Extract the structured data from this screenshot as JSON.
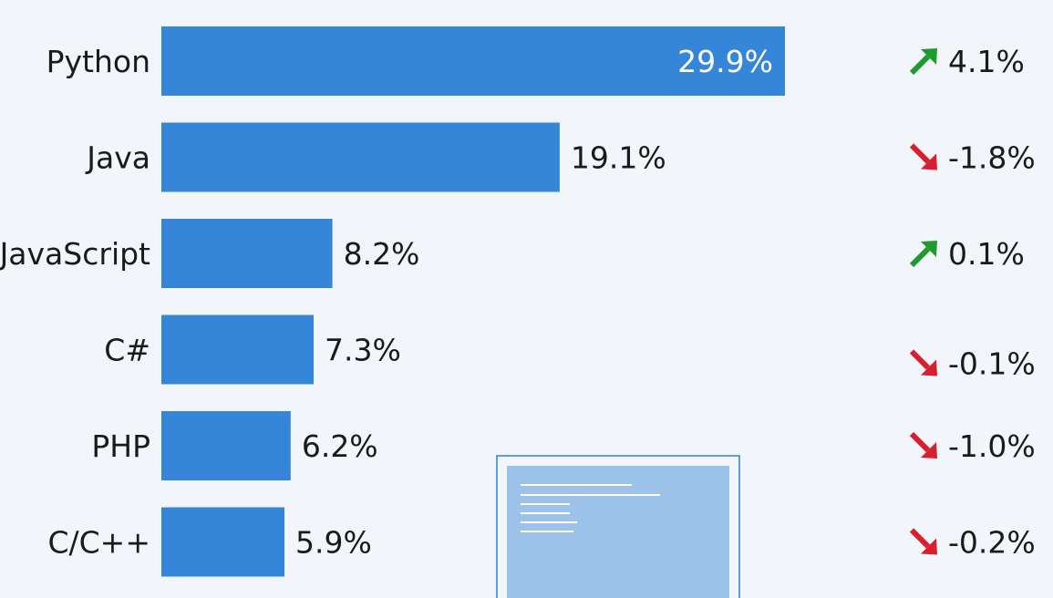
{
  "colors": {
    "background": "#f2f6fa",
    "bar": "#3586d8",
    "up": "#1f9a2e",
    "down": "#d6202f",
    "text": "#1a1a1a",
    "monitor_frame": "#5b9de0",
    "monitor_screen": "#9dc2ea"
  },
  "chart_data": {
    "type": "bar",
    "orientation": "horizontal",
    "categories": [
      "Python",
      "Java",
      "JavaScript",
      "C#",
      "PHP",
      "C/C++"
    ],
    "values": [
      29.9,
      19.1,
      8.2,
      7.3,
      6.2,
      5.9
    ],
    "value_labels": [
      "29.9%",
      "19.1%",
      "8.2%",
      "7.3%",
      "6.2%",
      "5.9%"
    ],
    "changes": [
      4.1,
      -1.8,
      0.1,
      -0.1,
      -1.0,
      -0.2
    ],
    "change_labels": [
      "4.1%",
      "-1.8%",
      "0.1%",
      "-0.1%",
      "-1.0%",
      "-0.2%"
    ],
    "title": "",
    "xlabel": "",
    "ylabel": "",
    "grid": false
  },
  "decoration": {
    "icon": "monitor-icon"
  }
}
